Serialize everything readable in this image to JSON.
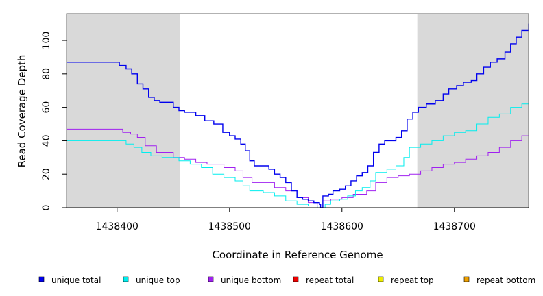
{
  "chart_data": {
    "type": "line",
    "xlabel": "Coordinate in Reference Genome",
    "ylabel": "Read Coverage Depth",
    "xlim": [
      1438355,
      1438766
    ],
    "ylim": [
      0,
      116
    ],
    "x_ticks": [
      1438400,
      1438500,
      1438600,
      1438700
    ],
    "y_ticks": [
      0,
      20,
      40,
      60,
      80,
      100
    ],
    "grid": false,
    "legend_position": "bottom",
    "shaded_regions": [
      {
        "x_start": 1438355,
        "x_end": 1438456,
        "color": "#d9d9d9"
      },
      {
        "x_start": 1438667,
        "x_end": 1438766,
        "color": "#d9d9d9"
      }
    ],
    "series": [
      {
        "name": "unique total",
        "color": "#0000ee",
        "points": [
          [
            1438355,
            87
          ],
          [
            1438400,
            87
          ],
          [
            1438402,
            85
          ],
          [
            1438408,
            83
          ],
          [
            1438413,
            80
          ],
          [
            1438418,
            74
          ],
          [
            1438423,
            71
          ],
          [
            1438428,
            66
          ],
          [
            1438433,
            64
          ],
          [
            1438438,
            63
          ],
          [
            1438450,
            60
          ],
          [
            1438455,
            58
          ],
          [
            1438460,
            57
          ],
          [
            1438470,
            55
          ],
          [
            1438478,
            52
          ],
          [
            1438486,
            50
          ],
          [
            1438494,
            45
          ],
          [
            1438500,
            43
          ],
          [
            1438505,
            41
          ],
          [
            1438510,
            38
          ],
          [
            1438514,
            34
          ],
          [
            1438518,
            28
          ],
          [
            1438522,
            25
          ],
          [
            1438530,
            25
          ],
          [
            1438535,
            23
          ],
          [
            1438540,
            20
          ],
          [
            1438545,
            18
          ],
          [
            1438550,
            15
          ],
          [
            1438555,
            10
          ],
          [
            1438560,
            6
          ],
          [
            1438565,
            5
          ],
          [
            1438570,
            4
          ],
          [
            1438575,
            3
          ],
          [
            1438580,
            2
          ],
          [
            1438581,
            0
          ],
          [
            1438583,
            7
          ],
          [
            1438588,
            8
          ],
          [
            1438592,
            10
          ],
          [
            1438598,
            11
          ],
          [
            1438603,
            13
          ],
          [
            1438608,
            16
          ],
          [
            1438613,
            19
          ],
          [
            1438618,
            21
          ],
          [
            1438623,
            25
          ],
          [
            1438628,
            33
          ],
          [
            1438633,
            38
          ],
          [
            1438638,
            40
          ],
          [
            1438648,
            42
          ],
          [
            1438653,
            46
          ],
          [
            1438658,
            53
          ],
          [
            1438663,
            57
          ],
          [
            1438668,
            60
          ],
          [
            1438675,
            62
          ],
          [
            1438683,
            64
          ],
          [
            1438690,
            68
          ],
          [
            1438695,
            71
          ],
          [
            1438702,
            73
          ],
          [
            1438708,
            75
          ],
          [
            1438715,
            76
          ],
          [
            1438720,
            80
          ],
          [
            1438726,
            84
          ],
          [
            1438732,
            87
          ],
          [
            1438738,
            89
          ],
          [
            1438745,
            93
          ],
          [
            1438750,
            98
          ],
          [
            1438755,
            102
          ],
          [
            1438760,
            106
          ],
          [
            1438766,
            110
          ]
        ]
      },
      {
        "name": "unique top",
        "color": "#00eeee",
        "points": [
          [
            1438355,
            40
          ],
          [
            1438400,
            40
          ],
          [
            1438408,
            38
          ],
          [
            1438415,
            36
          ],
          [
            1438422,
            33
          ],
          [
            1438430,
            31
          ],
          [
            1438440,
            30
          ],
          [
            1438455,
            28
          ],
          [
            1438465,
            26
          ],
          [
            1438475,
            24
          ],
          [
            1438485,
            20
          ],
          [
            1438495,
            18
          ],
          [
            1438505,
            16
          ],
          [
            1438512,
            13
          ],
          [
            1438518,
            10
          ],
          [
            1438530,
            9
          ],
          [
            1438540,
            7
          ],
          [
            1438550,
            4
          ],
          [
            1438560,
            2
          ],
          [
            1438570,
            1
          ],
          [
            1438578,
            0
          ],
          [
            1438585,
            2
          ],
          [
            1438590,
            4
          ],
          [
            1438598,
            5
          ],
          [
            1438605,
            7
          ],
          [
            1438612,
            10
          ],
          [
            1438618,
            12
          ],
          [
            1438625,
            16
          ],
          [
            1438630,
            21
          ],
          [
            1438640,
            23
          ],
          [
            1438648,
            25
          ],
          [
            1438655,
            30
          ],
          [
            1438660,
            36
          ],
          [
            1438670,
            38
          ],
          [
            1438680,
            40
          ],
          [
            1438690,
            43
          ],
          [
            1438700,
            45
          ],
          [
            1438710,
            46
          ],
          [
            1438720,
            50
          ],
          [
            1438730,
            54
          ],
          [
            1438740,
            56
          ],
          [
            1438750,
            60
          ],
          [
            1438760,
            62
          ],
          [
            1438766,
            64
          ]
        ]
      },
      {
        "name": "unique bottom",
        "color": "#a020f0",
        "points": [
          [
            1438355,
            47
          ],
          [
            1438400,
            47
          ],
          [
            1438405,
            45
          ],
          [
            1438412,
            44
          ],
          [
            1438418,
            42
          ],
          [
            1438425,
            37
          ],
          [
            1438435,
            33
          ],
          [
            1438450,
            30
          ],
          [
            1438460,
            29
          ],
          [
            1438470,
            27
          ],
          [
            1438480,
            26
          ],
          [
            1438495,
            24
          ],
          [
            1438505,
            22
          ],
          [
            1438512,
            18
          ],
          [
            1438520,
            15
          ],
          [
            1438532,
            15
          ],
          [
            1438540,
            12
          ],
          [
            1438550,
            10
          ],
          [
            1438560,
            6
          ],
          [
            1438570,
            3
          ],
          [
            1438578,
            0
          ],
          [
            1438583,
            4
          ],
          [
            1438590,
            5
          ],
          [
            1438600,
            6
          ],
          [
            1438610,
            8
          ],
          [
            1438622,
            10
          ],
          [
            1438630,
            15
          ],
          [
            1438640,
            18
          ],
          [
            1438650,
            19
          ],
          [
            1438660,
            20
          ],
          [
            1438670,
            22
          ],
          [
            1438680,
            24
          ],
          [
            1438690,
            26
          ],
          [
            1438700,
            27
          ],
          [
            1438710,
            29
          ],
          [
            1438720,
            31
          ],
          [
            1438730,
            33
          ],
          [
            1438740,
            36
          ],
          [
            1438750,
            40
          ],
          [
            1438760,
            43
          ],
          [
            1438766,
            46
          ]
        ]
      },
      {
        "name": "repeat total",
        "color": "#ee0000",
        "points": [
          [
            1438355,
            0
          ],
          [
            1438766,
            0
          ]
        ]
      },
      {
        "name": "repeat top",
        "color": "#eeee00",
        "points": [
          [
            1438355,
            0
          ],
          [
            1438766,
            0
          ]
        ]
      },
      {
        "name": "repeat bottom",
        "color": "#eea000",
        "points": [
          [
            1438355,
            0
          ],
          [
            1438766,
            0
          ]
        ]
      }
    ]
  }
}
